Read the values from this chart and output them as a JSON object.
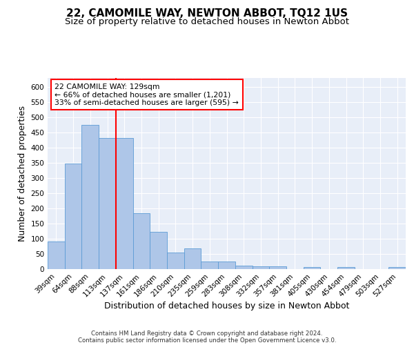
{
  "title": "22, CAMOMILE WAY, NEWTON ABBOT, TQ12 1US",
  "subtitle": "Size of property relative to detached houses in Newton Abbot",
  "xlabel": "Distribution of detached houses by size in Newton Abbot",
  "ylabel": "Number of detached properties",
  "bar_labels": [
    "39sqm",
    "64sqm",
    "88sqm",
    "113sqm",
    "137sqm",
    "161sqm",
    "186sqm",
    "210sqm",
    "235sqm",
    "259sqm",
    "283sqm",
    "308sqm",
    "332sqm",
    "357sqm",
    "381sqm",
    "405sqm",
    "430sqm",
    "454sqm",
    "479sqm",
    "503sqm",
    "527sqm"
  ],
  "bar_values": [
    90,
    348,
    475,
    432,
    432,
    183,
    123,
    55,
    67,
    25,
    25,
    12,
    8,
    8,
    0,
    7,
    0,
    7,
    0,
    0,
    7
  ],
  "bar_color": "#aec6e8",
  "bar_edge_color": "#5b9bd5",
  "vline_color": "red",
  "vline_x_index": 4,
  "annotation_text": "22 CAMOMILE WAY: 129sqm\n← 66% of detached houses are smaller (1,201)\n33% of semi-detached houses are larger (595) →",
  "annotation_box_color": "white",
  "annotation_box_edge": "red",
  "ylim": [
    0,
    630
  ],
  "yticks": [
    0,
    50,
    100,
    150,
    200,
    250,
    300,
    350,
    400,
    450,
    500,
    550,
    600
  ],
  "background_color": "#e8eef8",
  "footer_line1": "Contains HM Land Registry data © Crown copyright and database right 2024.",
  "footer_line2": "Contains public sector information licensed under the Open Government Licence v3.0.",
  "title_fontsize": 11,
  "subtitle_fontsize": 9.5,
  "xlabel_fontsize": 9,
  "ylabel_fontsize": 9,
  "tick_fontsize": 7.5,
  "annotation_fontsize": 7.8
}
